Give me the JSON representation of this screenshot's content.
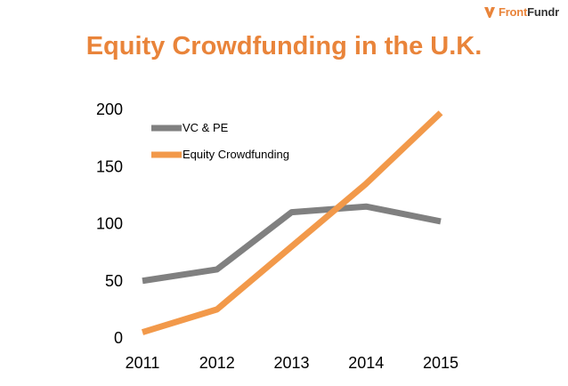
{
  "logo": {
    "brand_orange": "Front",
    "brand_dark": "Fundr",
    "icon": "frontfundr-logo-icon"
  },
  "colors": {
    "accent": "#e9843a",
    "series_vc": "#808080",
    "series_ec": "#f2994a"
  },
  "chart_data": {
    "type": "line",
    "title": "Equity Crowdfunding in the U.K.",
    "xlabel": "",
    "ylabel": "",
    "categories": [
      "2011",
      "2012",
      "2013",
      "2014",
      "2015"
    ],
    "ylim": [
      0,
      200
    ],
    "yticks": [
      "0",
      "50",
      "100",
      "150",
      "200"
    ],
    "grid": false,
    "legend": "top-left",
    "series": [
      {
        "name": "VC & PE",
        "values": [
          50,
          60,
          110,
          115,
          102
        ],
        "color": "#808080"
      },
      {
        "name": "Equity Crowdfunding",
        "values": [
          5,
          25,
          80,
          135,
          197
        ],
        "color": "#f2994a"
      }
    ]
  }
}
